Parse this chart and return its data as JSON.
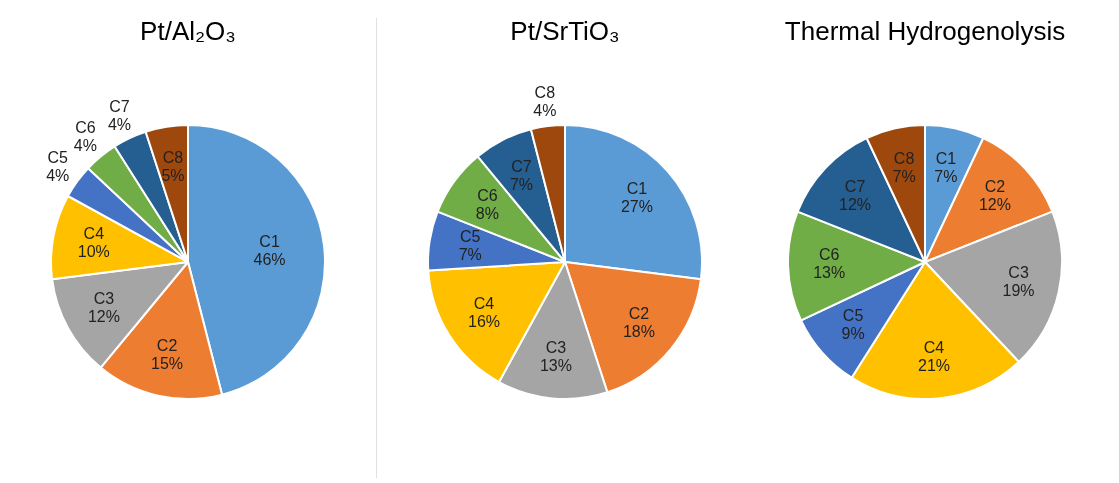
{
  "chart_data": [
    {
      "type": "pie",
      "title": "Pt/Al₂O₃",
      "categories": [
        "C1",
        "C2",
        "C3",
        "C4",
        "C5",
        "C6",
        "C7",
        "C8"
      ],
      "values": [
        46,
        15,
        12,
        10,
        4,
        4,
        4,
        5
      ],
      "value_labels": [
        "46%",
        "15%",
        "12%",
        "10%",
        "4%",
        "4%",
        "4%",
        "5%"
      ],
      "colors": [
        "#5b9bd5",
        "#ed7d31",
        "#a5a5a5",
        "#ffc000",
        "#4472c4",
        "#70ad47",
        "#255e91",
        "#9e480e"
      ]
    },
    {
      "type": "pie",
      "title": "Pt/SrTiO₃",
      "categories": [
        "C1",
        "C2",
        "C3",
        "C4",
        "C5",
        "C6",
        "C7",
        "C8"
      ],
      "values": [
        27,
        18,
        13,
        16,
        7,
        8,
        7,
        4
      ],
      "value_labels": [
        "27%",
        "18%",
        "13%",
        "16%",
        "7%",
        "8%",
        "7%",
        "4%"
      ],
      "colors": [
        "#5b9bd5",
        "#ed7d31",
        "#a5a5a5",
        "#ffc000",
        "#4472c4",
        "#70ad47",
        "#255e91",
        "#9e480e"
      ]
    },
    {
      "type": "pie",
      "title": "Thermal Hydrogenolysis",
      "categories": [
        "C1",
        "C2",
        "C3",
        "C4",
        "C5",
        "C6",
        "C7",
        "C8"
      ],
      "values": [
        7,
        12,
        19,
        21,
        9,
        13,
        12,
        7
      ],
      "value_labels": [
        "7%",
        "12%",
        "19%",
        "21%",
        "9%",
        "13%",
        "12%",
        "7%"
      ],
      "colors": [
        "#5b9bd5",
        "#ed7d31",
        "#a5a5a5",
        "#ffc000",
        "#4472c4",
        "#70ad47",
        "#255e91",
        "#9e480e"
      ]
    }
  ]
}
